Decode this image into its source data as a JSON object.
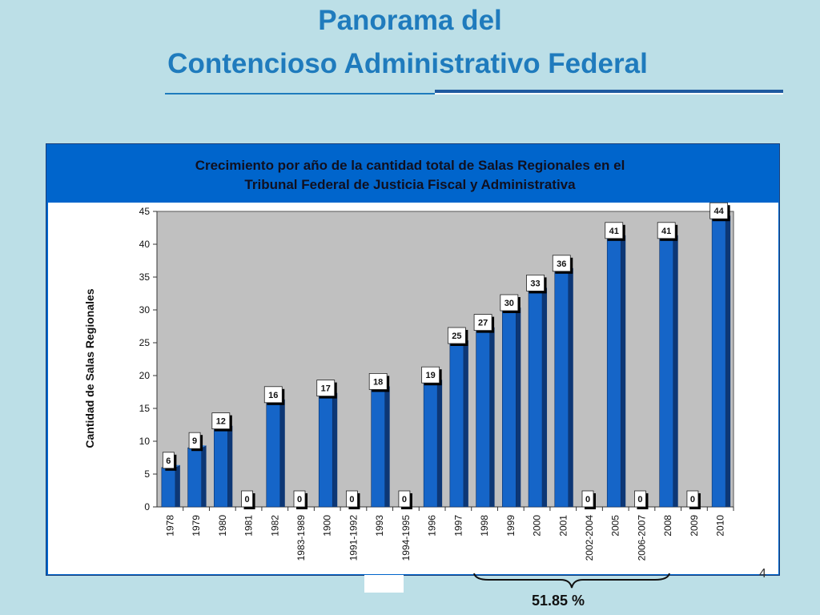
{
  "slide": {
    "title_line1": "Panorama del",
    "title_line2": "Contencioso Administrativo Federal",
    "page_number": "4",
    "brace_label": "51.85 %"
  },
  "colors": {
    "background": "#bcdfe7",
    "title": "#1f7bbd",
    "chart_frame": "#0065cc",
    "plot_area": "#c0c0c0",
    "bar_front": "#1565c8",
    "bar_side": "#0d3775"
  },
  "chart_data": {
    "type": "bar",
    "title_line1": "Crecimiento por año de la cantidad total de Salas Regionales en el",
    "title_line2": "Tribunal Federal de Justicia Fiscal y Administrativa",
    "ylabel": "Cantidad de Salas Regionales",
    "xlabel": "",
    "ylim": [
      0,
      45
    ],
    "yticks": [
      0,
      5,
      10,
      15,
      20,
      25,
      30,
      35,
      40,
      45
    ],
    "grid": false,
    "legend": "none",
    "categories": [
      "1978",
      "1979",
      "1980",
      "1981",
      "1982",
      "1983-1989",
      "1900",
      "1991-1992",
      "1993",
      "1994-1995",
      "1996",
      "1997",
      "1998",
      "1999",
      "2000",
      "2001",
      "2002-2004",
      "2005",
      "2006-2007",
      "2008",
      "2009",
      "2010"
    ],
    "values": [
      6,
      9,
      12,
      0,
      16,
      0,
      17,
      0,
      18,
      0,
      19,
      25,
      27,
      30,
      33,
      36,
      0,
      41,
      0,
      41,
      0,
      44
    ]
  }
}
